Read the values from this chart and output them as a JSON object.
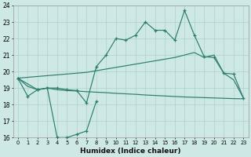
{
  "xlabel": "Humidex (Indice chaleur)",
  "bg_color": "#cde8e5",
  "line_color": "#2e7d6f",
  "grid_color": "#aed0cc",
  "xlim": [
    -0.5,
    23.5
  ],
  "ylim": [
    16,
    24
  ],
  "yticks": [
    16,
    17,
    18,
    19,
    20,
    21,
    22,
    23,
    24
  ],
  "xticks": [
    0,
    1,
    2,
    3,
    4,
    5,
    6,
    7,
    8,
    9,
    10,
    11,
    12,
    13,
    14,
    15,
    16,
    17,
    18,
    19,
    20,
    21,
    22,
    23
  ],
  "line1_x": [
    0,
    1,
    2,
    3,
    4,
    5,
    6,
    7,
    8,
    9,
    10,
    11,
    12,
    13,
    14,
    15,
    16,
    17,
    18,
    19,
    20,
    21,
    22,
    23
  ],
  "line1_y": [
    19.6,
    18.5,
    18.9,
    19.0,
    19.0,
    18.9,
    18.85,
    18.1,
    20.3,
    21.0,
    22.0,
    21.9,
    22.2,
    23.0,
    22.5,
    22.5,
    21.9,
    23.7,
    22.2,
    20.9,
    20.85,
    19.9,
    19.85,
    18.4
  ],
  "line2_x": [
    0,
    2,
    3,
    4,
    5,
    6,
    7,
    8
  ],
  "line2_y": [
    19.6,
    18.9,
    19.0,
    16.0,
    16.0,
    16.2,
    16.4,
    18.2
  ],
  "line3_x": [
    0,
    1,
    2,
    3,
    4,
    5,
    6,
    7,
    8,
    9,
    10,
    11,
    12,
    13,
    14,
    15,
    16,
    17,
    18,
    19,
    20,
    21,
    22,
    23
  ],
  "line3_y": [
    19.6,
    19.1,
    18.9,
    19.0,
    18.9,
    18.85,
    18.82,
    18.78,
    18.75,
    18.72,
    18.68,
    18.65,
    18.62,
    18.58,
    18.55,
    18.52,
    18.49,
    18.46,
    18.44,
    18.42,
    18.4,
    18.38,
    18.36,
    18.35
  ],
  "line4_x": [
    0,
    1,
    2,
    3,
    4,
    5,
    6,
    7,
    8,
    9,
    10,
    11,
    12,
    13,
    14,
    15,
    16,
    17,
    18,
    19,
    20,
    21,
    22,
    23
  ],
  "line4_y": [
    19.6,
    19.65,
    19.7,
    19.75,
    19.8,
    19.85,
    19.9,
    19.95,
    20.05,
    20.15,
    20.25,
    20.35,
    20.45,
    20.55,
    20.65,
    20.75,
    20.85,
    21.0,
    21.15,
    20.85,
    21.0,
    19.9,
    19.5,
    18.4
  ]
}
